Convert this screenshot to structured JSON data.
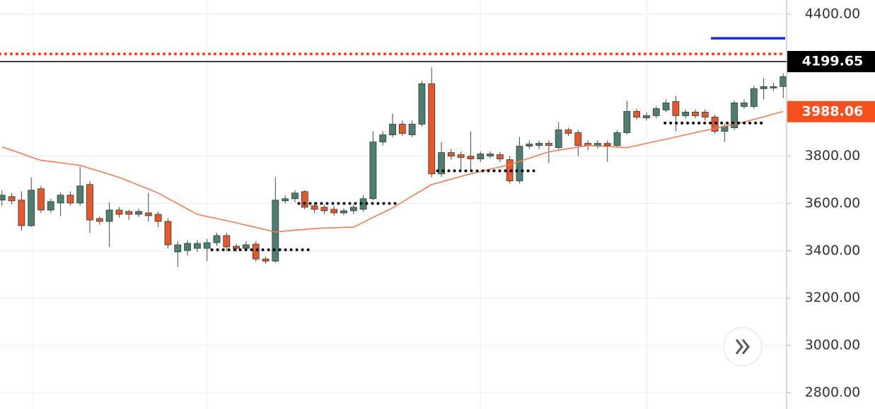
{
  "chart_data": {
    "type": "candlestick",
    "xlim": [
      -0.2,
      80.2
    ],
    "ylim": [
      2731,
      4460
    ],
    "yticks": [
      {
        "value": 4400,
        "label": "4400.00"
      },
      {
        "value": 3800,
        "label": "3800.00"
      },
      {
        "value": 3600,
        "label": "3600.00"
      },
      {
        "value": 3400,
        "label": "3400.00"
      },
      {
        "value": 3200,
        "label": "3200.00"
      },
      {
        "value": 3000,
        "label": "3000.00"
      },
      {
        "value": 2800,
        "label": "2800.00"
      }
    ],
    "grid": true,
    "x_gridlines": [
      3.2,
      21,
      49,
      66
    ],
    "up_color": "#4f7d72",
    "down_color": "#e5582b",
    "candles": [
      {
        "o": 3614,
        "h": 3656,
        "l": 3590,
        "c": 3635
      },
      {
        "o": 3629,
        "h": 3644,
        "l": 3596,
        "c": 3611
      },
      {
        "o": 3614,
        "h": 3650,
        "l": 3485,
        "c": 3506
      },
      {
        "o": 3506,
        "h": 3710,
        "l": 3500,
        "c": 3656
      },
      {
        "o": 3662,
        "h": 3674,
        "l": 3560,
        "c": 3572
      },
      {
        "o": 3572,
        "h": 3620,
        "l": 3560,
        "c": 3608
      },
      {
        "o": 3602,
        "h": 3647,
        "l": 3545,
        "c": 3635
      },
      {
        "o": 3635,
        "h": 3650,
        "l": 3590,
        "c": 3602
      },
      {
        "o": 3602,
        "h": 3755,
        "l": 3590,
        "c": 3674
      },
      {
        "o": 3680,
        "h": 3695,
        "l": 3476,
        "c": 3530
      },
      {
        "o": 3536,
        "h": 3545,
        "l": 3510,
        "c": 3524
      },
      {
        "o": 3524,
        "h": 3605,
        "l": 3416,
        "c": 3572
      },
      {
        "o": 3572,
        "h": 3585,
        "l": 3540,
        "c": 3554
      },
      {
        "o": 3566,
        "h": 3575,
        "l": 3530,
        "c": 3554
      },
      {
        "o": 3554,
        "h": 3578,
        "l": 3542,
        "c": 3566
      },
      {
        "o": 3560,
        "h": 3644,
        "l": 3524,
        "c": 3548
      },
      {
        "o": 3554,
        "h": 3566,
        "l": 3500,
        "c": 3524
      },
      {
        "o": 3524,
        "h": 3536,
        "l": 3410,
        "c": 3425
      },
      {
        "o": 3395,
        "h": 3440,
        "l": 3332,
        "c": 3425
      },
      {
        "o": 3401,
        "h": 3445,
        "l": 3380,
        "c": 3431
      },
      {
        "o": 3410,
        "h": 3445,
        "l": 3395,
        "c": 3431
      },
      {
        "o": 3410,
        "h": 3450,
        "l": 3356,
        "c": 3434
      },
      {
        "o": 3434,
        "h": 3476,
        "l": 3420,
        "c": 3464
      },
      {
        "o": 3464,
        "h": 3476,
        "l": 3400,
        "c": 3416
      },
      {
        "o": 3419,
        "h": 3430,
        "l": 3395,
        "c": 3410
      },
      {
        "o": 3410,
        "h": 3440,
        "l": 3398,
        "c": 3425
      },
      {
        "o": 3428,
        "h": 3440,
        "l": 3355,
        "c": 3365
      },
      {
        "o": 3365,
        "h": 3375,
        "l": 3345,
        "c": 3356
      },
      {
        "o": 3356,
        "h": 3710,
        "l": 3350,
        "c": 3614
      },
      {
        "o": 3611,
        "h": 3635,
        "l": 3600,
        "c": 3620
      },
      {
        "o": 3620,
        "h": 3656,
        "l": 3605,
        "c": 3644
      },
      {
        "o": 3650,
        "h": 3656,
        "l": 3575,
        "c": 3584
      },
      {
        "o": 3590,
        "h": 3605,
        "l": 3560,
        "c": 3575
      },
      {
        "o": 3584,
        "h": 3595,
        "l": 3555,
        "c": 3569
      },
      {
        "o": 3575,
        "h": 3590,
        "l": 3548,
        "c": 3560
      },
      {
        "o": 3560,
        "h": 3580,
        "l": 3550,
        "c": 3569
      },
      {
        "o": 3569,
        "h": 3596,
        "l": 3555,
        "c": 3584
      },
      {
        "o": 3575,
        "h": 3635,
        "l": 3565,
        "c": 3620
      },
      {
        "o": 3620,
        "h": 3905,
        "l": 3614,
        "c": 3860
      },
      {
        "o": 3860,
        "h": 3905,
        "l": 3845,
        "c": 3890
      },
      {
        "o": 3890,
        "h": 3980,
        "l": 3880,
        "c": 3935
      },
      {
        "o": 3935,
        "h": 3950,
        "l": 3885,
        "c": 3896
      },
      {
        "o": 3890,
        "h": 3950,
        "l": 3880,
        "c": 3935
      },
      {
        "o": 3935,
        "h": 4118,
        "l": 3925,
        "c": 4106
      },
      {
        "o": 4106,
        "h": 4175,
        "l": 3710,
        "c": 3725
      },
      {
        "o": 3725,
        "h": 3860,
        "l": 3712,
        "c": 3815
      },
      {
        "o": 3815,
        "h": 3830,
        "l": 3785,
        "c": 3800
      },
      {
        "o": 3806,
        "h": 3820,
        "l": 3740,
        "c": 3794
      },
      {
        "o": 3800,
        "h": 3905,
        "l": 3740,
        "c": 3788
      },
      {
        "o": 3788,
        "h": 3820,
        "l": 3775,
        "c": 3809
      },
      {
        "o": 3800,
        "h": 3820,
        "l": 3790,
        "c": 3809
      },
      {
        "o": 3806,
        "h": 3818,
        "l": 3775,
        "c": 3788
      },
      {
        "o": 3785,
        "h": 3800,
        "l": 3685,
        "c": 3695
      },
      {
        "o": 3695,
        "h": 3881,
        "l": 3685,
        "c": 3842
      },
      {
        "o": 3842,
        "h": 3866,
        "l": 3830,
        "c": 3851
      },
      {
        "o": 3845,
        "h": 3866,
        "l": 3830,
        "c": 3854
      },
      {
        "o": 3854,
        "h": 3866,
        "l": 3770,
        "c": 3845
      },
      {
        "o": 3836,
        "h": 3944,
        "l": 3825,
        "c": 3911
      },
      {
        "o": 3911,
        "h": 3920,
        "l": 3885,
        "c": 3896
      },
      {
        "o": 3899,
        "h": 3910,
        "l": 3800,
        "c": 3845
      },
      {
        "o": 3854,
        "h": 3866,
        "l": 3825,
        "c": 3845
      },
      {
        "o": 3845,
        "h": 3866,
        "l": 3830,
        "c": 3854
      },
      {
        "o": 3854,
        "h": 3866,
        "l": 3776,
        "c": 3845
      },
      {
        "o": 3845,
        "h": 3910,
        "l": 3835,
        "c": 3899
      },
      {
        "o": 3899,
        "h": 4034,
        "l": 3890,
        "c": 3989
      },
      {
        "o": 3989,
        "h": 4000,
        "l": 3955,
        "c": 3965
      },
      {
        "o": 3962,
        "h": 3985,
        "l": 3950,
        "c": 3971
      },
      {
        "o": 3971,
        "h": 4012,
        "l": 3960,
        "c": 4001
      },
      {
        "o": 3995,
        "h": 4040,
        "l": 3985,
        "c": 4025
      },
      {
        "o": 4031,
        "h": 4055,
        "l": 3905,
        "c": 3971
      },
      {
        "o": 3971,
        "h": 3998,
        "l": 3960,
        "c": 3986
      },
      {
        "o": 3986,
        "h": 3998,
        "l": 3960,
        "c": 3971
      },
      {
        "o": 3986,
        "h": 3998,
        "l": 3950,
        "c": 3965
      },
      {
        "o": 3965,
        "h": 3975,
        "l": 3895,
        "c": 3905
      },
      {
        "o": 3905,
        "h": 3938,
        "l": 3860,
        "c": 3926
      },
      {
        "o": 3920,
        "h": 4035,
        "l": 3910,
        "c": 4025
      },
      {
        "o": 4010,
        "h": 4040,
        "l": 4000,
        "c": 4025
      },
      {
        "o": 4010,
        "h": 4097,
        "l": 4000,
        "c": 4085
      },
      {
        "o": 4085,
        "h": 4130,
        "l": 4040,
        "c": 4094
      },
      {
        "o": 4088,
        "h": 4110,
        "l": 4075,
        "c": 4094
      },
      {
        "o": 4094,
        "h": 4150,
        "l": 4046,
        "c": 4136
      }
    ],
    "ma": {
      "color": "#f07a55",
      "values": [
        3839,
        3825,
        3811,
        3796,
        3782,
        3777,
        3772,
        3766,
        3761,
        3748,
        3736,
        3723,
        3710,
        3694,
        3677,
        3661,
        3644,
        3621,
        3599,
        3576,
        3554,
        3545,
        3536,
        3527,
        3518,
        3508,
        3499,
        3489,
        3479,
        3483,
        3487,
        3490,
        3494,
        3496,
        3497,
        3499,
        3500,
        3520,
        3541,
        3561,
        3581,
        3606,
        3631,
        3655,
        3680,
        3691,
        3703,
        3714,
        3725,
        3735,
        3745,
        3754,
        3764,
        3778,
        3791,
        3805,
        3818,
        3825,
        3832,
        3838,
        3845,
        3843,
        3841,
        3838,
        3836,
        3845,
        3854,
        3863,
        3872,
        3881,
        3890,
        3899,
        3908,
        3917,
        3926,
        3935,
        3944,
        3955,
        3966,
        3978,
        3989
      ]
    },
    "levels": [
      {
        "value": 3404,
        "x1": 21.5,
        "x2": 31.7,
        "color": "#000000",
        "style": "dotted"
      },
      {
        "value": 3600,
        "x1": 30.4,
        "x2": 40.5,
        "color": "#000000",
        "style": "dotted"
      },
      {
        "value": 3738,
        "x1": 44.6,
        "x2": 54.7,
        "color": "#000000",
        "style": "dotted"
      },
      {
        "value": 3940,
        "x1": 67.9,
        "x2": 78.0,
        "color": "#000000",
        "style": "dotted"
      },
      {
        "value": 4232,
        "x1": -0.2,
        "x2": 80.2,
        "color": "#e8401c",
        "style": "dotted"
      },
      {
        "value": 4298,
        "x1": 72.6,
        "x2": 80.2,
        "color": "#1a2fd8",
        "style": "solid"
      },
      {
        "value": 4199.65,
        "x1": -0.2,
        "x2": 80.2,
        "color": "#000000",
        "style": "solid"
      }
    ],
    "price_labels": [
      {
        "value": 4199.65,
        "color": "#000000"
      },
      {
        "value": 3988.06,
        "color": "#f5511e"
      }
    ]
  }
}
